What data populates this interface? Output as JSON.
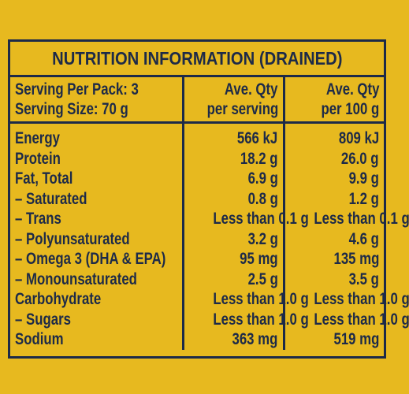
{
  "title": "NUTRITION INFORMATION (DRAINED)",
  "header": {
    "label": [
      "Serving Per Pack: 3",
      "Serving Size: 70 g"
    ],
    "col1": [
      "Ave. Qty",
      "per serving"
    ],
    "col2": [
      "Ave. Qty",
      "per 100 g"
    ]
  },
  "table": {
    "rows": [
      [
        "Energy",
        "566 kJ",
        "809 kJ"
      ],
      [
        "Protein",
        "18.2 g",
        "26.0 g"
      ],
      [
        "Fat, Total",
        "6.9 g",
        "9.9 g"
      ],
      [
        "– Saturated",
        "0.8 g",
        "1.2 g"
      ],
      [
        "– Trans",
        "Less than 0.1 g",
        "Less than 0.1 g"
      ],
      [
        "– Polyunsaturated",
        "3.2 g",
        "4.6 g"
      ],
      [
        "– Omega 3 (DHA & EPA)",
        "95 mg",
        "135 mg"
      ],
      [
        "– Monounsaturated",
        "2.5 g",
        "3.5 g"
      ],
      [
        "Carbohydrate",
        "Less than 1.0 g",
        "Less than 1.0 g"
      ],
      [
        "– Sugars",
        "Less than 1.0 g",
        "Less than 1.0 g"
      ],
      [
        "Sodium",
        "363 mg",
        "519 mg"
      ]
    ]
  }
}
